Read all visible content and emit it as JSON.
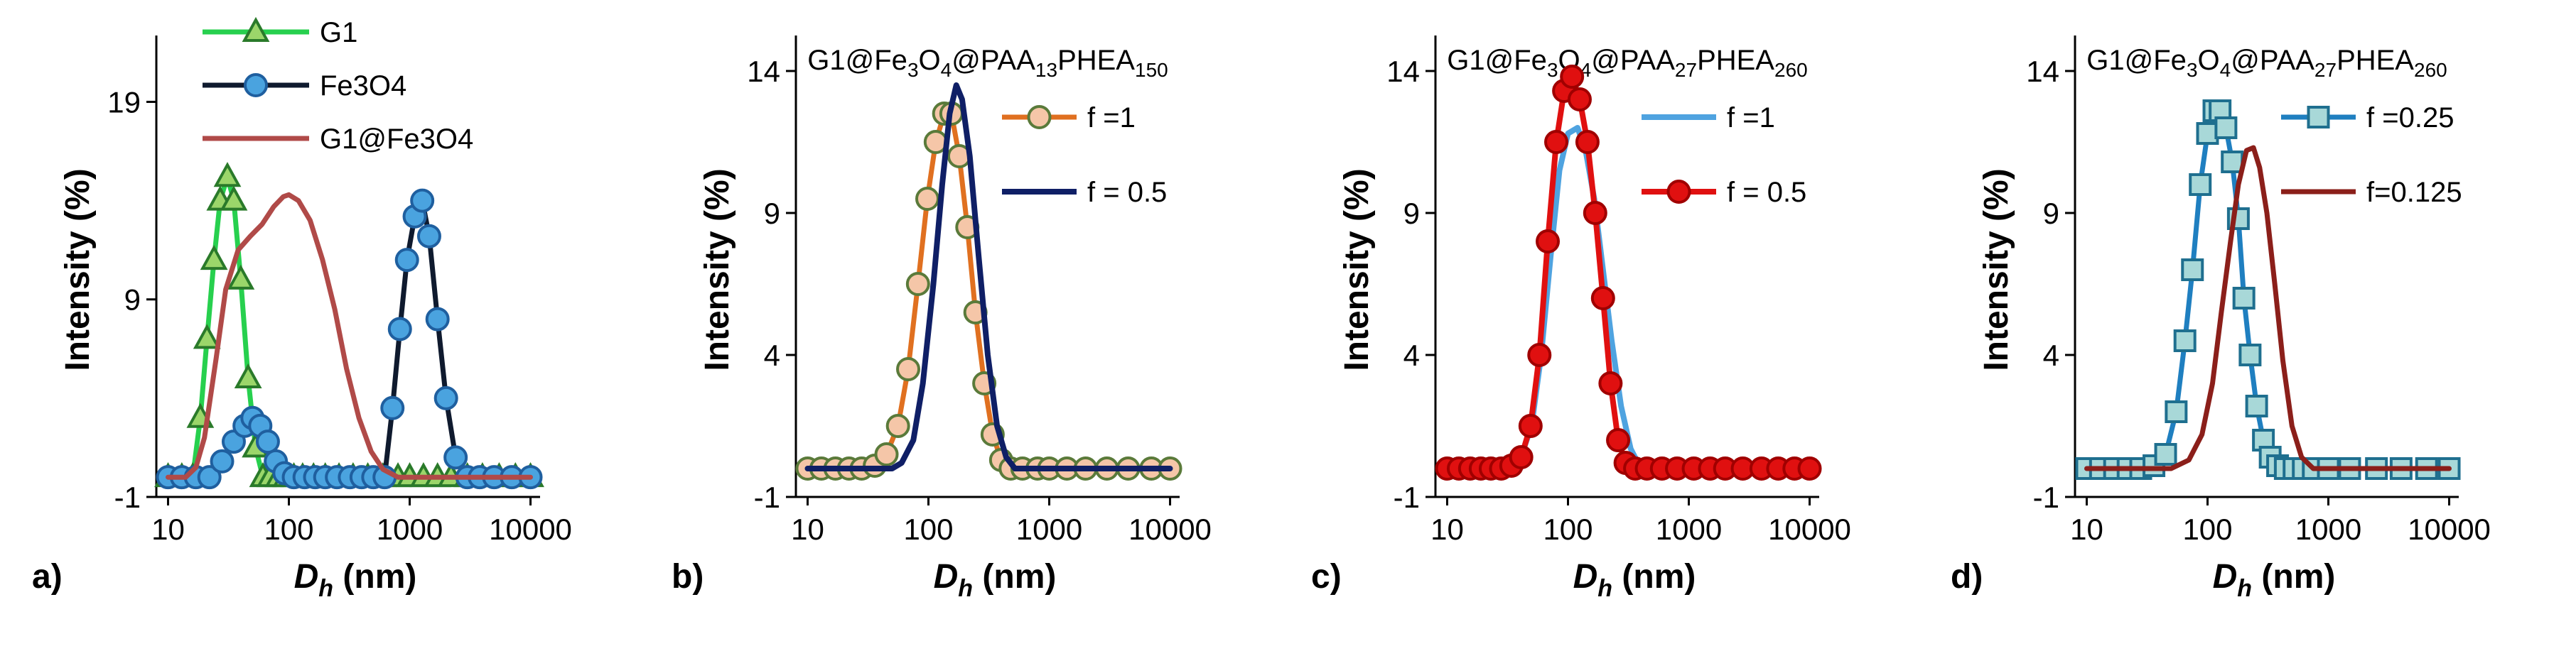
{
  "chart_data": [
    {
      "type": "line",
      "panel_label": "a)",
      "title": "",
      "xscale": "log",
      "xlim": [
        8,
        12000
      ],
      "xticks": [
        10,
        100,
        1000,
        10000
      ],
      "xtick_labels": [
        "10",
        "100",
        "1000",
        "10000"
      ],
      "ylim": [
        -1,
        22
      ],
      "yticks": [
        -1,
        9,
        19
      ],
      "ytick_labels": [
        "-1",
        "9",
        "19"
      ],
      "ylabel": "Intensity (%)",
      "xlabel_main": "D",
      "xlabel_sub": "h",
      "xlabel_unit": " (nm)",
      "legend_position": "top",
      "series": [
        {
          "name": "G1",
          "color": "#27d04e",
          "width": 7,
          "marker": "triangle",
          "marker_fill": "#9bd66a",
          "marker_stroke": "#2a7a2a",
          "in_legend": true,
          "x": [
            10,
            13,
            16,
            18.5,
            21,
            24,
            27,
            31,
            35,
            40,
            46,
            53,
            61,
            70,
            82,
            95,
            110,
            130,
            160,
            200,
            260,
            340,
            450,
            600,
            800,
            1000,
            1300,
            1700,
            2200,
            3000,
            4000,
            5500,
            7500,
            10000
          ],
          "y": [
            0,
            0,
            0,
            3,
            7,
            11,
            14,
            15.2,
            14,
            10,
            5,
            1.5,
            0,
            0,
            0,
            0,
            0,
            0,
            0,
            0,
            0,
            0,
            0,
            0,
            0,
            0,
            0,
            0,
            0,
            0,
            0,
            0,
            0,
            0
          ]
        },
        {
          "name": "Fe3O4",
          "color": "#0f1a2e",
          "width": 7,
          "marker": "circle",
          "marker_fill": "#4aa3df",
          "marker_stroke": "#1f5f9f",
          "in_legend": true,
          "x": [
            10,
            13,
            17,
            22,
            28,
            35,
            43,
            50,
            58,
            67,
            78,
            92,
            110,
            135,
            165,
            200,
            250,
            320,
            400,
            500,
            620,
            720,
            830,
            950,
            1100,
            1270,
            1450,
            1700,
            2000,
            2400,
            3000,
            3800,
            5000,
            7000,
            10000
          ],
          "y": [
            0,
            0,
            0,
            0,
            0.8,
            1.8,
            2.6,
            3,
            2.6,
            1.8,
            0.8,
            0.2,
            0,
            0,
            0,
            0,
            0,
            0,
            0,
            0,
            0,
            3.5,
            7.5,
            11,
            13.2,
            14,
            12.2,
            8,
            4,
            1,
            0,
            0,
            0,
            0,
            0
          ]
        },
        {
          "name": "G1@Fe3O4",
          "color": "#b04a48",
          "width": 7,
          "marker": "none",
          "in_legend": true,
          "x": [
            10,
            14,
            17,
            20,
            25,
            30,
            38,
            48,
            60,
            75,
            90,
            100,
            120,
            150,
            190,
            240,
            300,
            380,
            480,
            600,
            800,
            1000,
            2000,
            5000,
            10000
          ],
          "y": [
            0,
            0,
            0.5,
            2,
            6,
            9.5,
            11.5,
            12.2,
            12.8,
            13.7,
            14.2,
            14.3,
            14,
            13,
            11,
            8.5,
            5.5,
            3,
            1.3,
            0.4,
            0,
            0,
            0,
            0,
            0
          ]
        }
      ]
    },
    {
      "type": "line",
      "panel_label": "b)",
      "title_parts": [
        {
          "t": "G1@Fe",
          "s": "n"
        },
        {
          "t": "3",
          "s": "b"
        },
        {
          "t": "O",
          "s": "n"
        },
        {
          "t": "4",
          "s": "b"
        },
        {
          "t": "@PAA",
          "s": "n"
        },
        {
          "t": "13",
          "s": "b"
        },
        {
          "t": "PHEA",
          "s": "n"
        },
        {
          "t": "150",
          "s": "b"
        }
      ],
      "xscale": "log",
      "xlim": [
        8,
        12000
      ],
      "xticks": [
        10,
        100,
        1000,
        10000
      ],
      "xtick_labels": [
        "10",
        "100",
        "1000",
        "10000"
      ],
      "ylim": [
        -1,
        15
      ],
      "yticks": [
        -1,
        4,
        9,
        14
      ],
      "ytick_labels": [
        "-1",
        "4",
        "9",
        "14"
      ],
      "ylabel": "Intensity (%)",
      "xlabel_main": "D",
      "xlabel_sub": "h",
      "xlabel_unit": " (nm)",
      "legend_position": "top-right",
      "series": [
        {
          "name": "f =1",
          "color": "#e07020",
          "width": 7,
          "marker": "circle",
          "marker_fill": "#f5c6a8",
          "marker_stroke": "#5a7a3a",
          "in_legend": true,
          "x": [
            10,
            13,
            17,
            22,
            28,
            36,
            45,
            56,
            68,
            82,
            98,
            115,
            135,
            155,
            180,
            210,
            245,
            290,
            340,
            400,
            480,
            600,
            800,
            1000,
            1400,
            2000,
            3000,
            4500,
            7000,
            10000
          ],
          "y": [
            0,
            0,
            0,
            0,
            0,
            0.1,
            0.5,
            1.5,
            3.5,
            6.5,
            9.5,
            11.5,
            12.5,
            12.5,
            11,
            8.5,
            5.5,
            3,
            1.2,
            0.3,
            0,
            0,
            0,
            0,
            0,
            0,
            0,
            0,
            0,
            0
          ]
        },
        {
          "name": "f = 0.5",
          "color": "#0f1f66",
          "width": 8,
          "marker": "none",
          "in_legend": true,
          "x": [
            10,
            50,
            60,
            75,
            90,
            110,
            130,
            150,
            170,
            190,
            220,
            260,
            310,
            370,
            440,
            520,
            650,
            1000,
            10000
          ],
          "y": [
            0,
            0,
            0.2,
            1,
            3,
            6.5,
            10,
            12.5,
            13.5,
            13,
            11,
            7.5,
            4,
            1.5,
            0.4,
            0,
            0,
            0,
            0
          ]
        }
      ]
    },
    {
      "type": "line",
      "panel_label": "c)",
      "title_parts": [
        {
          "t": "G1@Fe",
          "s": "n"
        },
        {
          "t": "3",
          "s": "b"
        },
        {
          "t": "O",
          "s": "n"
        },
        {
          "t": "4",
          "s": "b"
        },
        {
          "t": "@PAA",
          "s": "n"
        },
        {
          "t": "27",
          "s": "b"
        },
        {
          "t": "PHEA",
          "s": "n"
        },
        {
          "t": "260",
          "s": "b"
        }
      ],
      "xscale": "log",
      "xlim": [
        8,
        12000
      ],
      "xticks": [
        10,
        100,
        1000,
        10000
      ],
      "xtick_labels": [
        "10",
        "100",
        "1000",
        "10000"
      ],
      "ylim": [
        -1,
        15
      ],
      "yticks": [
        -1,
        4,
        9,
        14
      ],
      "ytick_labels": [
        "-1",
        "4",
        "9",
        "14"
      ],
      "ylabel": "Intensity (%)",
      "xlabel_main": "D",
      "xlabel_sub": "h",
      "xlabel_unit": " (nm)",
      "legend_position": "top-right",
      "series": [
        {
          "name": "f =1",
          "color": "#4fa3e0",
          "width": 8,
          "marker": "none",
          "in_legend": true,
          "x": [
            10,
            30,
            40,
            50,
            60,
            72,
            85,
            100,
            120,
            140,
            165,
            195,
            230,
            275,
            330,
            400,
            500,
            1000,
            10000
          ],
          "y": [
            0,
            0,
            0.3,
            1.5,
            4,
            7.5,
            10.5,
            11.8,
            12,
            11.2,
            9.5,
            7,
            4.5,
            2.2,
            0.7,
            0,
            0,
            0,
            0
          ]
        },
        {
          "name": "f = 0.5",
          "color": "#e01010",
          "width": 8,
          "marker": "circle",
          "marker_fill": "#e01010",
          "marker_stroke": "#a00000",
          "in_legend": true,
          "x": [
            10,
            12.5,
            15.5,
            19,
            23,
            28,
            34,
            41,
            49,
            58,
            68,
            80,
            93,
            108,
            125,
            145,
            168,
            195,
            225,
            260,
            300,
            360,
            450,
            600,
            800,
            1100,
            1500,
            2000,
            2800,
            4000,
            5500,
            7500,
            10000
          ],
          "y": [
            0,
            0,
            0,
            0,
            0,
            0,
            0.1,
            0.4,
            1.5,
            4,
            8,
            11.5,
            13.3,
            13.8,
            13,
            11.5,
            9,
            6,
            3,
            1,
            0.2,
            0,
            0,
            0,
            0,
            0,
            0,
            0,
            0,
            0,
            0,
            0,
            0
          ]
        }
      ]
    },
    {
      "type": "line",
      "panel_label": "d)",
      "title_parts": [
        {
          "t": "G1@Fe",
          "s": "n"
        },
        {
          "t": "3",
          "s": "b"
        },
        {
          "t": "O",
          "s": "n"
        },
        {
          "t": "4",
          "s": "b"
        },
        {
          "t": "@PAA",
          "s": "n"
        },
        {
          "t": "27",
          "s": "b"
        },
        {
          "t": "PHEA",
          "s": "n"
        },
        {
          "t": "260",
          "s": "b"
        }
      ],
      "xscale": "log",
      "xlim": [
        8,
        12000
      ],
      "xticks": [
        10,
        100,
        1000,
        10000
      ],
      "xtick_labels": [
        "10",
        "100",
        "1000",
        "10000"
      ],
      "ylim": [
        -1,
        15
      ],
      "yticks": [
        -1,
        4,
        9,
        14
      ],
      "ytick_labels": [
        "-1",
        "4",
        "9",
        "14"
      ],
      "ylabel": "Intensity (%)",
      "xlabel_main": "D",
      "xlabel_sub": "h",
      "xlabel_unit": " (nm)",
      "legend_position": "top-right",
      "series": [
        {
          "name": "f =0.25",
          "color": "#1f7fc0",
          "width": 7,
          "marker": "square",
          "marker_fill": "#a8d8d8",
          "marker_stroke": "#1f6f8f",
          "in_legend": true,
          "x": [
            10,
            13,
            17,
            22,
            28,
            36,
            45,
            55,
            65,
            75,
            87,
            100,
            113,
            127,
            142,
            160,
            180,
            200,
            225,
            255,
            290,
            330,
            380,
            440,
            520,
            620,
            750,
            1000,
            1500,
            2500,
            4000,
            6500,
            10000
          ],
          "y": [
            0,
            0,
            0,
            0,
            0,
            0.1,
            0.5,
            2,
            4.5,
            7,
            10,
            11.8,
            12.6,
            12.6,
            12,
            10.8,
            8.8,
            6,
            4,
            2.2,
            1,
            0.4,
            0.1,
            0,
            0,
            0,
            0,
            0,
            0,
            0,
            0,
            0,
            0
          ]
        },
        {
          "name": "f=0.125",
          "color": "#8b1f1a",
          "width": 7,
          "marker": "none",
          "in_legend": true,
          "x": [
            10,
            50,
            70,
            90,
            110,
            130,
            155,
            180,
            210,
            240,
            270,
            310,
            360,
            420,
            500,
            600,
            750,
            1000,
            10000
          ],
          "y": [
            0,
            0,
            0.3,
            1.2,
            3,
            5.5,
            8,
            10,
            11.2,
            11.3,
            10.6,
            9,
            6.5,
            3.8,
            1.5,
            0.4,
            0,
            0,
            0
          ]
        }
      ]
    }
  ]
}
